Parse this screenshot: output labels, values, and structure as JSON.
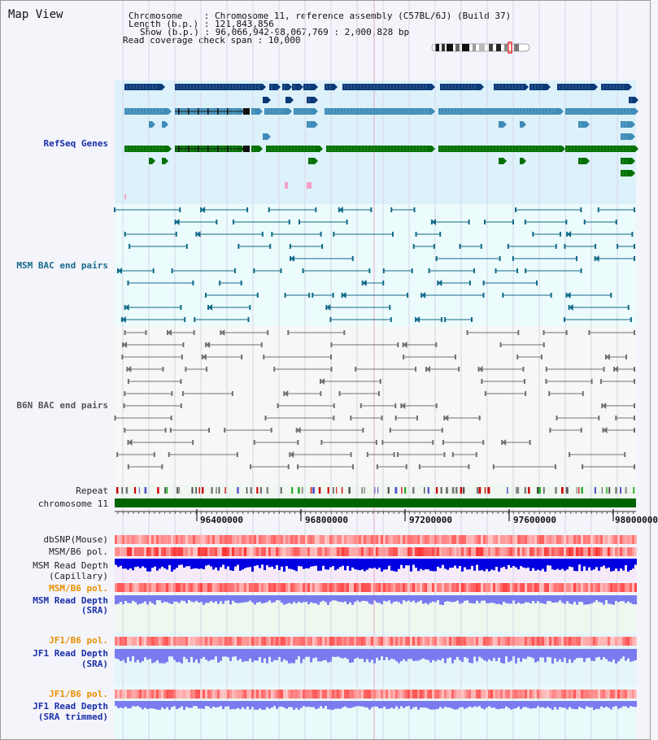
{
  "page": {
    "title": "Map View"
  },
  "info": {
    "chromosome_label": "Chromosome    : ",
    "chromosome_value": "Chromosome 11, reference assembly (C57BL/6J) (Build 37)",
    "length_label": "Length (b.p.) : ",
    "length_value": "121,843,856",
    "show_label": "Show (b.p.) : ",
    "show_value": "96,066,942-98,067,769 : 2,000,828 bp",
    "coverage_label": "Read coverage check span : ",
    "coverage_value": "10,000"
  },
  "tracks": {
    "refseq": "RefSeq Genes",
    "msm_bac": "MSM BAC end pairs",
    "b6n_bac": "B6N BAC end pairs",
    "repeat": "Repeat",
    "chromosome": "chromosome 11",
    "dbsnp": "dbSNP(Mouse)",
    "msm_b6_pol": "MSM/B6 pol.",
    "msm_read_depth_cap_1": "MSM Read Depth",
    "msm_read_depth_cap_2": "(Capillary)",
    "msm_b6_pol_2": "MSM/B6 pol.",
    "msm_read_depth_sra_1": "MSM Read Depth",
    "msm_read_depth_sra_2": "(SRA)",
    "jf1_b6_pol": "JF1/B6 pol.",
    "jf1_read_depth_1": "JF1 Read Depth",
    "jf1_read_depth_2": "(SRA)",
    "jf1_b6_pol_2": "JF1/B6 pol.",
    "jf1_read_depth_t1": "JF1 Read Depth",
    "jf1_read_depth_t2": "(SRA trimmed)"
  },
  "axis": {
    "ticks": [
      "96400000",
      "96800000",
      "97200000",
      "97600000",
      "98000000"
    ]
  },
  "colors": {
    "refseq_bg": "#ddf1fb",
    "msm_bg": "#ecfbfb",
    "b6n_bg": "#f7f7f7",
    "gene_dark": "#0b3a78",
    "gene_mid": "#3f8cb8",
    "gene_green": "#007000",
    "bac_msm": "#106a8a",
    "bac_b6n": "#707070",
    "snp": "#ff4040",
    "depth_dark": "#0000e0",
    "depth_light": "#7b7bf0"
  }
}
